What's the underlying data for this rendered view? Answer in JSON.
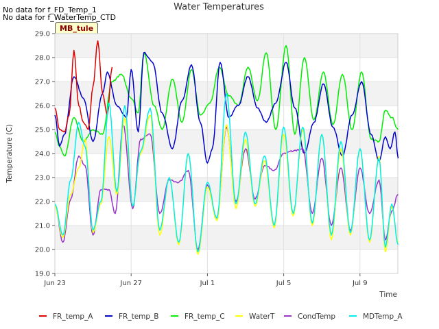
{
  "notes": [
    "No data for f_FD_Temp_1",
    "No data for f_WaterTemp_CTD"
  ],
  "badge": "MB_tule",
  "chart_data": {
    "type": "line",
    "title": "Water Temperatures",
    "xlabel": "Time",
    "ylabel": "Temperature (C)",
    "ylim": [
      19.0,
      29.0
    ],
    "yticks": [
      19.0,
      20.0,
      21.0,
      22.0,
      23.0,
      24.0,
      25.0,
      26.0,
      27.0,
      28.0,
      29.0
    ],
    "xlim": [
      "2023-06-23",
      "2023-07-11T00:00"
    ],
    "xticks": [
      {
        "label": "Jun 23",
        "date": "2023-06-23"
      },
      {
        "label": "Jun 27",
        "date": "2023-06-27"
      },
      {
        "label": "Jul 1",
        "date": "2023-07-01"
      },
      {
        "label": "Jul 5",
        "date": "2023-07-05"
      },
      {
        "label": "Jul 9",
        "date": "2023-07-09"
      }
    ],
    "grid": true,
    "legend_position": "bottom",
    "series": [
      {
        "name": "FR_temp_A",
        "color": "#dd0000",
        "points": [
          [
            "2023-06-23T00:00",
            25.9
          ],
          [
            "2023-06-23T06:00",
            25.0
          ],
          [
            "2023-06-23T12:00",
            24.9
          ],
          [
            "2023-06-23T18:00",
            25.6
          ],
          [
            "2023-06-24T00:00",
            28.3
          ],
          [
            "2023-06-24T06:00",
            26.0
          ],
          [
            "2023-06-24T12:00",
            25.3
          ],
          [
            "2023-06-24T18:00",
            25.0
          ],
          [
            "2023-06-25T00:00",
            26.8
          ],
          [
            "2023-06-25T06:00",
            28.7
          ],
          [
            "2023-06-25T12:00",
            26.5
          ],
          [
            "2023-06-25T18:00",
            25.6
          ],
          [
            "2023-06-26T00:00",
            27.6
          ]
        ]
      },
      {
        "name": "FR_temp_B",
        "color": "#0000cc",
        "points": [
          [
            "2023-06-23T00:00",
            25.6
          ],
          [
            "2023-06-23T06:00",
            24.3
          ],
          [
            "2023-06-23T12:00",
            24.8
          ],
          [
            "2023-06-24T00:00",
            27.2
          ],
          [
            "2023-06-24T12:00",
            26.3
          ],
          [
            "2023-06-25T00:00",
            24.5
          ],
          [
            "2023-06-25T12:00",
            26.5
          ],
          [
            "2023-06-25T18:00",
            27.4
          ],
          [
            "2023-06-26T06:00",
            26.0
          ],
          [
            "2023-06-26T18:00",
            25.5
          ],
          [
            "2023-06-27T00:00",
            27.5
          ],
          [
            "2023-06-27T09:00",
            24.9
          ],
          [
            "2023-06-27T16:00",
            28.2
          ],
          [
            "2023-06-28T03:00",
            27.8
          ],
          [
            "2023-06-28T15:00",
            25.7
          ],
          [
            "2023-06-29T04:00",
            24.2
          ],
          [
            "2023-06-29T16:00",
            26.2
          ],
          [
            "2023-06-30T04:00",
            27.7
          ],
          [
            "2023-06-30T15:00",
            25.3
          ],
          [
            "2023-07-01T00:00",
            23.6
          ],
          [
            "2023-07-01T06:00",
            24.2
          ],
          [
            "2023-07-01T16:00",
            27.8
          ],
          [
            "2023-07-02T03:00",
            25.5
          ],
          [
            "2023-07-02T15:00",
            26.0
          ],
          [
            "2023-07-03T03:00",
            27.2
          ],
          [
            "2023-07-03T15:00",
            25.9
          ],
          [
            "2023-07-04T02:00",
            25.3
          ],
          [
            "2023-07-04T14:00",
            26.1
          ],
          [
            "2023-07-05T03:00",
            27.8
          ],
          [
            "2023-07-05T14:00",
            25.9
          ],
          [
            "2023-07-06T02:00",
            24.0
          ],
          [
            "2023-07-06T14:00",
            25.3
          ],
          [
            "2023-07-07T02:00",
            26.9
          ],
          [
            "2023-07-07T14:00",
            25.1
          ],
          [
            "2023-07-08T02:00",
            23.9
          ],
          [
            "2023-07-08T14:00",
            25.6
          ],
          [
            "2023-07-09T02:00",
            27.0
          ],
          [
            "2023-07-09T14:00",
            24.8
          ],
          [
            "2023-07-10T00:00",
            23.7
          ],
          [
            "2023-07-10T08:00",
            24.7
          ],
          [
            "2023-07-10T14:00",
            24.2
          ],
          [
            "2023-07-10T20:00",
            24.9
          ],
          [
            "2023-07-11T00:00",
            23.8
          ]
        ]
      },
      {
        "name": "FR_temp_C",
        "color": "#00ee00",
        "points": [
          [
            "2023-06-23T00:00",
            24.9
          ],
          [
            "2023-06-23T06:00",
            24.3
          ],
          [
            "2023-06-23T12:00",
            23.9
          ],
          [
            "2023-06-24T00:00",
            25.5
          ],
          [
            "2023-06-24T12:00",
            24.5
          ],
          [
            "2023-06-25T00:00",
            25.0
          ],
          [
            "2023-06-25T12:00",
            24.8
          ],
          [
            "2023-06-26T00:00",
            27.0
          ],
          [
            "2023-06-26T12:00",
            27.3
          ],
          [
            "2023-06-27T00:00",
            26.3
          ],
          [
            "2023-06-27T09:00",
            25.7
          ],
          [
            "2023-06-27T16:00",
            28.2
          ],
          [
            "2023-06-28T05:00",
            26.0
          ],
          [
            "2023-06-28T15:00",
            25.0
          ],
          [
            "2023-06-29T04:00",
            27.1
          ],
          [
            "2023-06-29T16:00",
            25.3
          ],
          [
            "2023-06-30T04:00",
            27.5
          ],
          [
            "2023-06-30T15:00",
            25.6
          ],
          [
            "2023-07-01T03:00",
            26.1
          ],
          [
            "2023-07-01T15:00",
            27.6
          ],
          [
            "2023-07-02T03:00",
            26.4
          ],
          [
            "2023-07-02T15:00",
            26.0
          ],
          [
            "2023-07-03T03:00",
            27.6
          ],
          [
            "2023-07-03T15:00",
            26.2
          ],
          [
            "2023-07-04T02:00",
            28.2
          ],
          [
            "2023-07-04T14:00",
            25.0
          ],
          [
            "2023-07-05T03:00",
            28.5
          ],
          [
            "2023-07-05T14:00",
            24.8
          ],
          [
            "2023-07-06T02:00",
            28.0
          ],
          [
            "2023-07-06T14:00",
            25.4
          ],
          [
            "2023-07-07T02:00",
            27.4
          ],
          [
            "2023-07-07T14:00",
            25.2
          ],
          [
            "2023-07-08T02:00",
            27.3
          ],
          [
            "2023-07-08T14:00",
            25.0
          ],
          [
            "2023-07-09T02:00",
            27.4
          ],
          [
            "2023-07-09T14:00",
            24.6
          ],
          [
            "2023-07-10T00:00",
            24.5
          ],
          [
            "2023-07-10T08:00",
            25.8
          ],
          [
            "2023-07-10T16:00",
            25.5
          ],
          [
            "2023-07-11T00:00",
            25.0
          ]
        ]
      },
      {
        "name": "WaterT",
        "color": "#ffff00",
        "points": [
          [
            "2023-06-23T00:00",
            21.8
          ],
          [
            "2023-06-23T10:00",
            20.5
          ],
          [
            "2023-06-23T20:00",
            22.3
          ],
          [
            "2023-06-24T06:00",
            23.4
          ],
          [
            "2023-06-24T14:00",
            24.6
          ],
          [
            "2023-06-25T00:00",
            20.7
          ],
          [
            "2023-06-25T10:00",
            21.9
          ],
          [
            "2023-06-25T20:00",
            24.7
          ],
          [
            "2023-06-26T06:00",
            22.3
          ],
          [
            "2023-06-26T16:00",
            25.5
          ],
          [
            "2023-06-27T02:00",
            21.8
          ],
          [
            "2023-06-27T12:00",
            24.0
          ],
          [
            "2023-06-28T00:00",
            25.6
          ],
          [
            "2023-06-28T12:00",
            20.6
          ],
          [
            "2023-06-29T00:00",
            23.0
          ],
          [
            "2023-06-29T12:00",
            20.2
          ],
          [
            "2023-06-30T00:00",
            24.0
          ],
          [
            "2023-06-30T12:00",
            19.8
          ],
          [
            "2023-07-01T00:00",
            22.6
          ],
          [
            "2023-07-01T12:00",
            21.2
          ],
          [
            "2023-07-02T00:00",
            25.2
          ],
          [
            "2023-07-02T12:00",
            21.7
          ],
          [
            "2023-07-03T00:00",
            24.6
          ],
          [
            "2023-07-03T12:00",
            21.8
          ],
          [
            "2023-07-04T00:00",
            23.7
          ],
          [
            "2023-07-04T12:00",
            20.9
          ],
          [
            "2023-07-05T00:00",
            24.8
          ],
          [
            "2023-07-05T12:00",
            21.4
          ],
          [
            "2023-07-06T00:00",
            25.0
          ],
          [
            "2023-07-06T12:00",
            21.0
          ],
          [
            "2023-07-07T00:00",
            24.8
          ],
          [
            "2023-07-07T12:00",
            20.4
          ],
          [
            "2023-07-08T00:00",
            24.2
          ],
          [
            "2023-07-08T12:00",
            20.6
          ],
          [
            "2023-07-09T00:00",
            24.2
          ],
          [
            "2023-07-09T12:00",
            20.3
          ],
          [
            "2023-07-10T00:00",
            23.9
          ],
          [
            "2023-07-10T08:00",
            19.9
          ],
          [
            "2023-07-10T16:00",
            21.8
          ],
          [
            "2023-07-11T00:00",
            20.3
          ]
        ]
      },
      {
        "name": "CondTemp",
        "color": "#9933cc",
        "points": [
          [
            "2023-06-23T00:00",
            21.8
          ],
          [
            "2023-06-23T10:00",
            20.3
          ],
          [
            "2023-06-23T20:00",
            22.1
          ],
          [
            "2023-06-24T06:00",
            23.9
          ],
          [
            "2023-06-24T14:00",
            23.5
          ],
          [
            "2023-06-25T00:00",
            20.6
          ],
          [
            "2023-06-25T10:00",
            22.5
          ],
          [
            "2023-06-25T20:00",
            22.5
          ],
          [
            "2023-06-26T04:00",
            21.5
          ],
          [
            "2023-06-26T14:00",
            25.2
          ],
          [
            "2023-06-27T02:00",
            21.7
          ],
          [
            "2023-06-27T12:00",
            24.6
          ],
          [
            "2023-06-28T00:00",
            24.8
          ],
          [
            "2023-06-28T12:00",
            21.5
          ],
          [
            "2023-06-29T00:00",
            22.9
          ],
          [
            "2023-06-29T12:00",
            22.8
          ],
          [
            "2023-06-30T00:00",
            23.3
          ],
          [
            "2023-06-30T12:00",
            20.0
          ],
          [
            "2023-07-01T00:00",
            22.7
          ],
          [
            "2023-07-01T12:00",
            21.3
          ],
          [
            "2023-07-02T00:00",
            25.1
          ],
          [
            "2023-07-02T12:00",
            22.0
          ],
          [
            "2023-07-03T00:00",
            24.2
          ],
          [
            "2023-07-03T12:00",
            22.1
          ],
          [
            "2023-07-04T00:00",
            23.5
          ],
          [
            "2023-07-04T12:00",
            23.3
          ],
          [
            "2023-07-05T00:00",
            24.0
          ],
          [
            "2023-07-05T12:00",
            24.1
          ],
          [
            "2023-07-06T00:00",
            24.2
          ],
          [
            "2023-07-06T12:00",
            21.5
          ],
          [
            "2023-07-07T00:00",
            23.8
          ],
          [
            "2023-07-07T12:00",
            21.0
          ],
          [
            "2023-07-08T00:00",
            23.4
          ],
          [
            "2023-07-08T12:00",
            20.8
          ],
          [
            "2023-07-09T00:00",
            23.4
          ],
          [
            "2023-07-09T12:00",
            21.5
          ],
          [
            "2023-07-10T00:00",
            22.9
          ],
          [
            "2023-07-10T08:00",
            20.4
          ],
          [
            "2023-07-10T16:00",
            21.6
          ],
          [
            "2023-07-11T00:00",
            22.3
          ]
        ]
      },
      {
        "name": "MDTemp_A",
        "color": "#00eeee",
        "points": [
          [
            "2023-06-23T00:00",
            21.9
          ],
          [
            "2023-06-23T10:00",
            20.6
          ],
          [
            "2023-06-23T20:00",
            22.9
          ],
          [
            "2023-06-24T06:00",
            25.3
          ],
          [
            "2023-06-24T14:00",
            24.3
          ],
          [
            "2023-06-25T00:00",
            20.8
          ],
          [
            "2023-06-25T10:00",
            22.0
          ],
          [
            "2023-06-25T20:00",
            26.1
          ],
          [
            "2023-06-26T06:00",
            22.4
          ],
          [
            "2023-06-26T16:00",
            26.0
          ],
          [
            "2023-06-27T02:00",
            21.8
          ],
          [
            "2023-06-27T12:00",
            24.1
          ],
          [
            "2023-06-28T00:00",
            25.9
          ],
          [
            "2023-06-28T12:00",
            20.8
          ],
          [
            "2023-06-29T00:00",
            23.0
          ],
          [
            "2023-06-29T12:00",
            20.3
          ],
          [
            "2023-06-30T00:00",
            24.0
          ],
          [
            "2023-06-30T12:00",
            19.9
          ],
          [
            "2023-07-01T00:00",
            22.8
          ],
          [
            "2023-07-01T12:00",
            21.3
          ],
          [
            "2023-07-02T00:00",
            26.5
          ],
          [
            "2023-07-02T12:00",
            21.9
          ],
          [
            "2023-07-03T00:00",
            24.9
          ],
          [
            "2023-07-03T12:00",
            21.9
          ],
          [
            "2023-07-04T00:00",
            23.9
          ],
          [
            "2023-07-04T12:00",
            21.0
          ],
          [
            "2023-07-05T00:00",
            25.1
          ],
          [
            "2023-07-05T12:00",
            21.5
          ],
          [
            "2023-07-06T00:00",
            25.1
          ],
          [
            "2023-07-06T12:00",
            21.1
          ],
          [
            "2023-07-07T00:00",
            24.8
          ],
          [
            "2023-07-07T12:00",
            20.6
          ],
          [
            "2023-07-08T00:00",
            24.5
          ],
          [
            "2023-07-08T12:00",
            20.7
          ],
          [
            "2023-07-09T00:00",
            24.2
          ],
          [
            "2023-07-09T12:00",
            20.4
          ],
          [
            "2023-07-10T00:00",
            23.8
          ],
          [
            "2023-07-10T08:00",
            20.1
          ],
          [
            "2023-07-10T16:00",
            21.9
          ],
          [
            "2023-07-11T00:00",
            20.2
          ]
        ]
      }
    ]
  }
}
